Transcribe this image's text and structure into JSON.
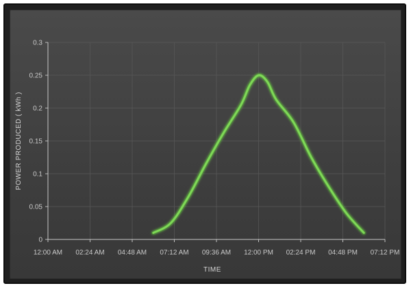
{
  "chart_data": {
    "type": "line",
    "xlabel": "TIME",
    "ylabel": "POWER PRODUCED ( kWh )",
    "x_ticks": [
      "12:00 AM",
      "02:24 AM",
      "04:48 AM",
      "07:12 AM",
      "09:36 AM",
      "12:00 PM",
      "02:24 PM",
      "04:48 PM",
      "07:12 PM"
    ],
    "y_ticks": [
      "0",
      "0.05",
      "0.1",
      "0.15",
      "0.2",
      "0.25",
      "0.3"
    ],
    "ylim": [
      0,
      0.3
    ],
    "xlim_hours": [
      0,
      19.2
    ],
    "grid": true,
    "legend": "none",
    "series": [
      {
        "color": "#7ed957",
        "points": [
          {
            "x": "06:00 AM",
            "y": 0.01
          },
          {
            "x": "07:00 AM",
            "y": 0.025
          },
          {
            "x": "08:00 AM",
            "y": 0.065
          },
          {
            "x": "09:00 AM",
            "y": 0.115
          },
          {
            "x": "10:00 AM",
            "y": 0.162
          },
          {
            "x": "11:00 AM",
            "y": 0.205
          },
          {
            "x": "11:30 AM",
            "y": 0.235
          },
          {
            "x": "12:00 PM",
            "y": 0.25
          },
          {
            "x": "12:30 PM",
            "y": 0.24
          },
          {
            "x": "01:00 PM",
            "y": 0.213
          },
          {
            "x": "02:00 PM",
            "y": 0.178
          },
          {
            "x": "03:00 PM",
            "y": 0.125
          },
          {
            "x": "04:00 PM",
            "y": 0.08
          },
          {
            "x": "05:00 PM",
            "y": 0.04
          },
          {
            "x": "06:00 PM",
            "y": 0.01
          }
        ]
      }
    ]
  }
}
